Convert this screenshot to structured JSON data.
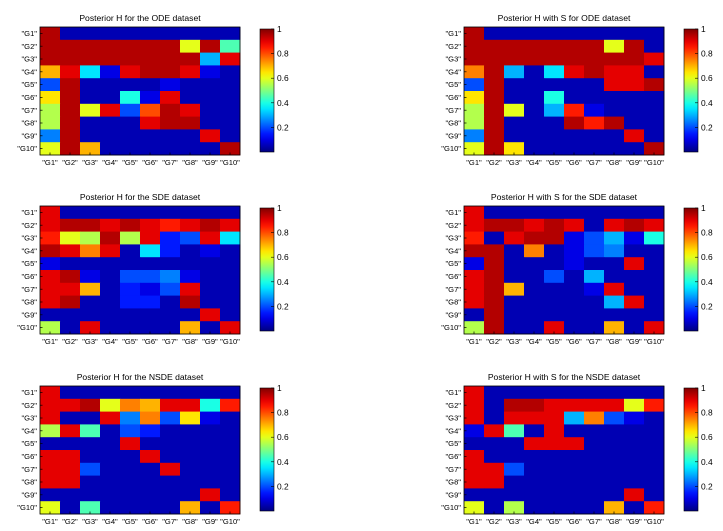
{
  "chart_data": [
    {
      "type": "heatmap",
      "title": "Posterior H for the ODE dataset",
      "x_categories": [
        "\"G1\"",
        "\"G2\"",
        "\"G3\"",
        "\"G4\"",
        "\"G5\"",
        "\"G6\"",
        "\"G7\"",
        "\"G8\"",
        "\"G9\"",
        "\"G10\""
      ],
      "y_categories": [
        "\"G1\"",
        "\"G2\"",
        "\"G3\"",
        "\"G4\"",
        "\"G5\"",
        "\"G6\"",
        "\"G7\"",
        "\"G8\"",
        "\"G9\"",
        "\"G10\""
      ],
      "values": [
        [
          0.95,
          0.05,
          0.05,
          0.05,
          0.05,
          0.05,
          0.05,
          0.05,
          0.05,
          0.05
        ],
        [
          0.95,
          0.95,
          0.95,
          0.95,
          0.95,
          0.95,
          0.95,
          0.6,
          0.95,
          0.45
        ],
        [
          0.95,
          0.95,
          0.95,
          0.95,
          0.95,
          0.95,
          0.95,
          0.95,
          0.3,
          0.9
        ],
        [
          0.7,
          0.9,
          0.35,
          0.1,
          0.9,
          0.95,
          0.95,
          0.9,
          0.1,
          0.05
        ],
        [
          0.2,
          0.95,
          0.05,
          0.05,
          0.05,
          0.05,
          0.1,
          0.05,
          0.05,
          0.05
        ],
        [
          0.65,
          0.95,
          0.05,
          0.05,
          0.4,
          0.1,
          0.9,
          0.05,
          0.05,
          0.05
        ],
        [
          0.55,
          0.95,
          0.6,
          0.9,
          0.2,
          0.8,
          0.95,
          0.9,
          0.05,
          0.05
        ],
        [
          0.55,
          0.95,
          0.05,
          0.05,
          0.05,
          0.9,
          0.95,
          0.95,
          0.05,
          0.05
        ],
        [
          0.25,
          0.95,
          0.05,
          0.05,
          0.05,
          0.05,
          0.05,
          0.05,
          0.9,
          0.05
        ],
        [
          0.6,
          0.95,
          0.7,
          0.05,
          0.05,
          0.05,
          0.05,
          0.05,
          0.05,
          0.95
        ]
      ],
      "colorbar": {
        "min": 0,
        "max": 1,
        "ticks": [
          "0.2",
          "0.4",
          "0.6",
          "0.8",
          "1"
        ],
        "colormap": "jet"
      }
    },
    {
      "type": "heatmap",
      "title": "Posterior H with S for ODE dataset",
      "x_categories": [
        "\"G1\"",
        "\"G2\"",
        "\"G3\"",
        "\"G4\"",
        "\"G5\"",
        "\"G6\"",
        "\"G7\"",
        "\"G8\"",
        "\"G9\"",
        "\"G10\""
      ],
      "y_categories": [
        "\"G1\"",
        "\"G2\"",
        "\"G3\"",
        "\"G4\"",
        "\"G5\"",
        "\"G6\"",
        "\"G7\"",
        "\"G8\"",
        "\"G9\"",
        "\"G10\""
      ],
      "values": [
        [
          0.95,
          0.05,
          0.05,
          0.05,
          0.05,
          0.05,
          0.05,
          0.05,
          0.05,
          0.05
        ],
        [
          0.95,
          0.95,
          0.95,
          0.95,
          0.95,
          0.95,
          0.95,
          0.6,
          0.95,
          0.05
        ],
        [
          0.95,
          0.95,
          0.95,
          0.95,
          0.95,
          0.95,
          0.95,
          0.95,
          0.95,
          0.9
        ],
        [
          0.75,
          0.95,
          0.3,
          0.05,
          0.35,
          0.9,
          0.95,
          0.9,
          0.9,
          0.05
        ],
        [
          0.2,
          0.95,
          0.05,
          0.05,
          0.05,
          0.05,
          0.05,
          0.9,
          0.9,
          0.95
        ],
        [
          0.65,
          0.95,
          0.05,
          0.05,
          0.4,
          0.05,
          0.05,
          0.05,
          0.05,
          0.05
        ],
        [
          0.55,
          0.95,
          0.6,
          0.05,
          0.3,
          0.85,
          0.1,
          0.05,
          0.05,
          0.05
        ],
        [
          0.55,
          0.95,
          0.05,
          0.05,
          0.05,
          0.95,
          0.85,
          0.95,
          0.05,
          0.05
        ],
        [
          0.25,
          0.95,
          0.05,
          0.05,
          0.05,
          0.05,
          0.05,
          0.05,
          0.9,
          0.05
        ],
        [
          0.6,
          0.95,
          0.65,
          0.05,
          0.05,
          0.05,
          0.05,
          0.05,
          0.05,
          0.95
        ]
      ],
      "colorbar": {
        "min": 0,
        "max": 1,
        "ticks": [
          "0.2",
          "0.4",
          "0.6",
          "0.8",
          "1"
        ],
        "colormap": "jet"
      }
    },
    {
      "type": "heatmap",
      "title": "Posterior H for the SDE dataset",
      "x_categories": [
        "\"G1\"",
        "\"G2\"",
        "\"G3\"",
        "\"G4\"",
        "\"G5\"",
        "\"G6\"",
        "\"G7\"",
        "\"G8\"",
        "\"G9\"",
        "\"G10\""
      ],
      "y_categories": [
        "\"G1\"",
        "\"G2\"",
        "\"G3\"",
        "\"G4\"",
        "\"G5\"",
        "\"G6\"",
        "\"G7\"",
        "\"G8\"",
        "\"G9\"",
        "\"G10\""
      ],
      "values": [
        [
          0.9,
          0.05,
          0.05,
          0.05,
          0.05,
          0.05,
          0.05,
          0.05,
          0.05,
          0.05
        ],
        [
          0.9,
          0.95,
          0.95,
          0.9,
          0.95,
          0.9,
          0.85,
          0.9,
          0.95,
          0.9
        ],
        [
          0.85,
          0.6,
          0.55,
          0.95,
          0.55,
          0.9,
          0.15,
          0.2,
          0.9,
          0.35
        ],
        [
          0.95,
          0.9,
          0.75,
          0.9,
          0.05,
          0.35,
          0.15,
          0.05,
          0.1,
          0.05
        ],
        [
          0.1,
          0.05,
          0.05,
          0.05,
          0.05,
          0.05,
          0.05,
          0.05,
          0.05,
          0.05
        ],
        [
          0.9,
          0.95,
          0.1,
          0.05,
          0.2,
          0.2,
          0.25,
          0.1,
          0.05,
          0.05
        ],
        [
          0.9,
          0.9,
          0.7,
          0.05,
          0.15,
          0.1,
          0.2,
          0.9,
          0.05,
          0.05
        ],
        [
          0.9,
          0.95,
          0.05,
          0.05,
          0.15,
          0.15,
          0.05,
          0.95,
          0.05,
          0.05
        ],
        [
          0.05,
          0.05,
          0.05,
          0.05,
          0.05,
          0.05,
          0.05,
          0.05,
          0.9,
          0.05
        ],
        [
          0.55,
          0.05,
          0.9,
          0.05,
          0.05,
          0.05,
          0.05,
          0.7,
          0.05,
          0.9
        ]
      ],
      "colorbar": {
        "min": 0,
        "max": 1,
        "ticks": [
          "0.2",
          "0.4",
          "0.6",
          "0.8",
          "1"
        ],
        "colormap": "jet"
      }
    },
    {
      "type": "heatmap",
      "title": "Posterior H with S for the SDE dataset",
      "x_categories": [
        "\"G1\"",
        "\"G2\"",
        "\"G3\"",
        "\"G4\"",
        "\"G5\"",
        "\"G6\"",
        "\"G7\"",
        "\"G8\"",
        "\"G9\"",
        "\"G10\""
      ],
      "y_categories": [
        "\"G1\"",
        "\"G2\"",
        "\"G3\"",
        "\"G4\"",
        "\"G5\"",
        "\"G6\"",
        "\"G7\"",
        "\"G8\"",
        "\"G9\"",
        "\"G10\""
      ],
      "values": [
        [
          0.9,
          0.05,
          0.05,
          0.05,
          0.05,
          0.05,
          0.05,
          0.05,
          0.05,
          0.05
        ],
        [
          0.9,
          0.95,
          0.95,
          0.9,
          0.95,
          0.9,
          0.05,
          0.9,
          0.95,
          0.9
        ],
        [
          0.85,
          0.05,
          0.9,
          0.95,
          0.95,
          0.1,
          0.2,
          0.3,
          0.1,
          0.4
        ],
        [
          0.95,
          0.95,
          0.05,
          0.75,
          0.05,
          0.1,
          0.2,
          0.25,
          0.05,
          0.05
        ],
        [
          0.1,
          0.95,
          0.05,
          0.05,
          0.05,
          0.1,
          0.05,
          0.05,
          0.9,
          0.05
        ],
        [
          0.9,
          0.95,
          0.05,
          0.05,
          0.2,
          0.05,
          0.3,
          0.05,
          0.05,
          0.05
        ],
        [
          0.9,
          0.95,
          0.7,
          0.05,
          0.05,
          0.05,
          0.1,
          0.9,
          0.05,
          0.05
        ],
        [
          0.9,
          0.95,
          0.05,
          0.05,
          0.05,
          0.05,
          0.05,
          0.3,
          0.9,
          0.05
        ],
        [
          0.05,
          0.95,
          0.05,
          0.05,
          0.05,
          0.05,
          0.05,
          0.05,
          0.05,
          0.05
        ],
        [
          0.55,
          0.95,
          0.05,
          0.05,
          0.9,
          0.05,
          0.05,
          0.7,
          0.05,
          0.9
        ]
      ],
      "colorbar": {
        "min": 0,
        "max": 1,
        "ticks": [
          "0.2",
          "0.4",
          "0.6",
          "0.8",
          "1"
        ],
        "colormap": "jet"
      }
    },
    {
      "type": "heatmap",
      "title": "Posterior H for the NSDE dataset",
      "x_categories": [
        "\"G1\"",
        "\"G2\"",
        "\"G3\"",
        "\"G4\"",
        "\"G5\"",
        "\"G6\"",
        "\"G7\"",
        "\"G8\"",
        "\"G9\"",
        "\"G10\""
      ],
      "y_categories": [
        "\"G1\"",
        "\"G2\"",
        "\"G3\"",
        "\"G4\"",
        "\"G5\"",
        "\"G6\"",
        "\"G7\"",
        "\"G8\"",
        "\"G9\"",
        "\"G10\""
      ],
      "values": [
        [
          0.9,
          0.05,
          0.05,
          0.05,
          0.05,
          0.05,
          0.05,
          0.05,
          0.05,
          0.05
        ],
        [
          0.9,
          0.9,
          0.95,
          0.6,
          0.75,
          0.7,
          0.9,
          0.9,
          0.4,
          0.85
        ],
        [
          0.9,
          0.05,
          0.05,
          0.9,
          0.25,
          0.75,
          0.2,
          0.65,
          0.1,
          0.05
        ],
        [
          0.55,
          0.9,
          0.45,
          0.05,
          0.2,
          0.15,
          0.05,
          0.05,
          0.05,
          0.05
        ],
        [
          0.05,
          0.05,
          0.05,
          0.05,
          0.9,
          0.05,
          0.05,
          0.05,
          0.05,
          0.05
        ],
        [
          0.9,
          0.9,
          0.05,
          0.05,
          0.05,
          0.9,
          0.05,
          0.05,
          0.05,
          0.05
        ],
        [
          0.9,
          0.9,
          0.2,
          0.05,
          0.05,
          0.05,
          0.9,
          0.05,
          0.05,
          0.05
        ],
        [
          0.9,
          0.9,
          0.05,
          0.05,
          0.05,
          0.05,
          0.05,
          0.05,
          0.05,
          0.05
        ],
        [
          0.05,
          0.05,
          0.05,
          0.05,
          0.05,
          0.05,
          0.05,
          0.05,
          0.9,
          0.05
        ],
        [
          0.6,
          0.05,
          0.45,
          0.05,
          0.05,
          0.05,
          0.05,
          0.7,
          0.05,
          0.85
        ]
      ],
      "colorbar": {
        "min": 0,
        "max": 1,
        "ticks": [
          "0.2",
          "0.4",
          "0.6",
          "0.8",
          "1"
        ],
        "colormap": "jet"
      }
    },
    {
      "type": "heatmap",
      "title": "Posterior H with S for the NSDE dataset",
      "x_categories": [
        "\"G1\"",
        "\"G2\"",
        "\"G3\"",
        "\"G4\"",
        "\"G5\"",
        "\"G6\"",
        "\"G7\"",
        "\"G8\"",
        "\"G9\"",
        "\"G10\""
      ],
      "y_categories": [
        "\"G1\"",
        "\"G2\"",
        "\"G3\"",
        "\"G4\"",
        "\"G5\"",
        "\"G6\"",
        "\"G7\"",
        "\"G8\"",
        "\"G9\"",
        "\"G10\""
      ],
      "values": [
        [
          0.9,
          0.05,
          0.05,
          0.05,
          0.05,
          0.05,
          0.05,
          0.05,
          0.05,
          0.05
        ],
        [
          0.9,
          0.05,
          0.95,
          0.95,
          0.9,
          0.9,
          0.9,
          0.9,
          0.6,
          0.85
        ],
        [
          0.9,
          0.05,
          0.9,
          0.9,
          0.9,
          0.3,
          0.75,
          0.2,
          0.1,
          0.05
        ],
        [
          0.1,
          0.9,
          0.45,
          0.05,
          0.9,
          0.05,
          0.05,
          0.05,
          0.05,
          0.05
        ],
        [
          0.05,
          0.05,
          0.05,
          0.9,
          0.9,
          0.9,
          0.05,
          0.05,
          0.05,
          0.05
        ],
        [
          0.9,
          0.05,
          0.05,
          0.05,
          0.05,
          0.05,
          0.05,
          0.05,
          0.05,
          0.05
        ],
        [
          0.9,
          0.9,
          0.2,
          0.05,
          0.05,
          0.05,
          0.05,
          0.05,
          0.05,
          0.05
        ],
        [
          0.9,
          0.9,
          0.05,
          0.05,
          0.05,
          0.05,
          0.05,
          0.05,
          0.05,
          0.05
        ],
        [
          0.05,
          0.05,
          0.05,
          0.05,
          0.05,
          0.05,
          0.05,
          0.05,
          0.9,
          0.05
        ],
        [
          0.6,
          0.05,
          0.55,
          0.05,
          0.05,
          0.05,
          0.05,
          0.7,
          0.05,
          0.85
        ]
      ],
      "colorbar": {
        "min": 0,
        "max": 1,
        "ticks": [
          "0.2",
          "0.4",
          "0.6",
          "0.8",
          "1"
        ],
        "colormap": "jet"
      }
    }
  ]
}
